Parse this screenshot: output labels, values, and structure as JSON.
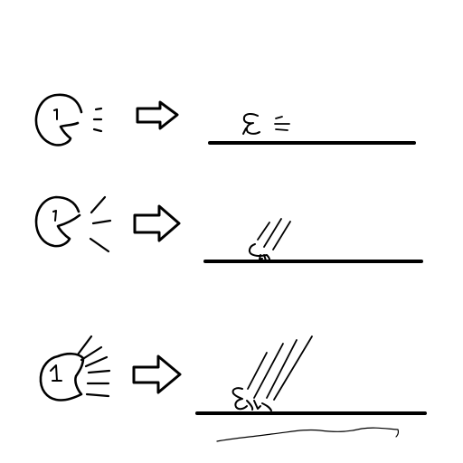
{
  "diagram": {
    "background_color": "#ffffff",
    "ink_color": "#000000",
    "rows": [
      {
        "mouth_icon": "pacman-face-icon",
        "voice_level": "soft",
        "arrow_icon": "right-arrow-outline-icon",
        "ground": "line",
        "effect": "small-creature-with-speed-marks"
      },
      {
        "mouth_icon": "pacman-face-icon",
        "voice_level": "medium",
        "arrow_icon": "right-arrow-outline-icon",
        "ground": "line",
        "effect": "creature-falling-with-streaks"
      },
      {
        "mouth_icon": "shouting-face-icon",
        "voice_level": "loud",
        "arrow_icon": "right-arrow-outline-icon",
        "ground": "line-with-shadow-wave",
        "effect": "creature-crashing-with-long-streaks"
      }
    ]
  }
}
